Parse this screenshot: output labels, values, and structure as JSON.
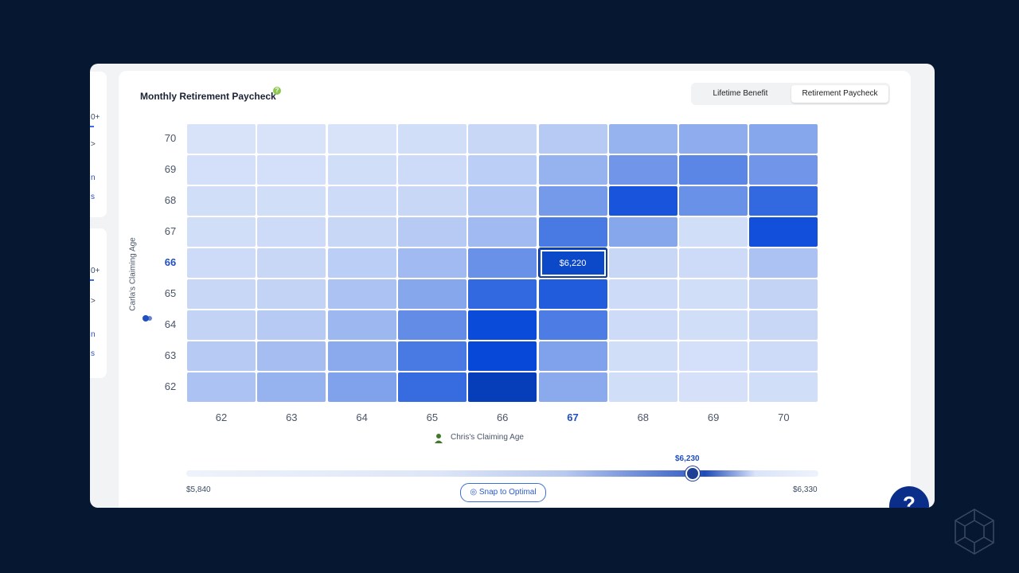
{
  "panel": {
    "title": "Monthly Retirement Paycheck",
    "help_glyph": "?"
  },
  "toggle": {
    "options": [
      "Lifetime Benefit",
      "Retirement Paycheck"
    ],
    "active": "Retirement Paycheck"
  },
  "sidebar_fragments": [
    "0+",
    ">",
    "n",
    "s",
    "0+",
    ">",
    "n",
    "s"
  ],
  "heatmap": {
    "y_axis_label": "Carla's Claiming Age",
    "x_axis_label": "Chris's Claiming Age",
    "y_ages": [
      "70",
      "69",
      "68",
      "67",
      "66",
      "65",
      "64",
      "63",
      "62"
    ],
    "x_ages": [
      "62",
      "63",
      "64",
      "65",
      "66",
      "67",
      "68",
      "69",
      "70"
    ],
    "highlight_y": "66",
    "highlight_x": "67",
    "selected_value": "$6,220",
    "intensity": [
      [
        0.05,
        0.05,
        0.05,
        0.08,
        0.12,
        0.2,
        0.35,
        0.38,
        0.42
      ],
      [
        0.07,
        0.07,
        0.08,
        0.1,
        0.18,
        0.35,
        0.52,
        0.62,
        0.52
      ],
      [
        0.08,
        0.08,
        0.1,
        0.12,
        0.22,
        0.5,
        0.92,
        0.55,
        0.8
      ],
      [
        0.08,
        0.1,
        0.12,
        0.2,
        0.3,
        0.7,
        0.42,
        0.08,
        0.95
      ],
      [
        0.1,
        0.12,
        0.18,
        0.3,
        0.55,
        1.0,
        0.12,
        0.1,
        0.25
      ],
      [
        0.12,
        0.15,
        0.25,
        0.42,
        0.8,
        0.88,
        0.1,
        0.08,
        0.15
      ],
      [
        0.15,
        0.2,
        0.32,
        0.58,
        0.98,
        0.68,
        0.1,
        0.08,
        0.12
      ],
      [
        0.2,
        0.28,
        0.4,
        0.7,
        1.0,
        0.45,
        0.08,
        0.07,
        0.1
      ],
      [
        0.25,
        0.35,
        0.45,
        0.78,
        1.05,
        0.4,
        0.08,
        0.06,
        0.08
      ]
    ],
    "colors": {
      "low": "#e3ebfb",
      "high": "#0748d9"
    }
  },
  "slider": {
    "current_label": "$6,230",
    "min_label": "$5,840",
    "max_label": "$6,330",
    "level": 0.8
  },
  "snap_button": {
    "label": "Snap to Optimal"
  },
  "help_fab": {
    "glyph": "?"
  }
}
